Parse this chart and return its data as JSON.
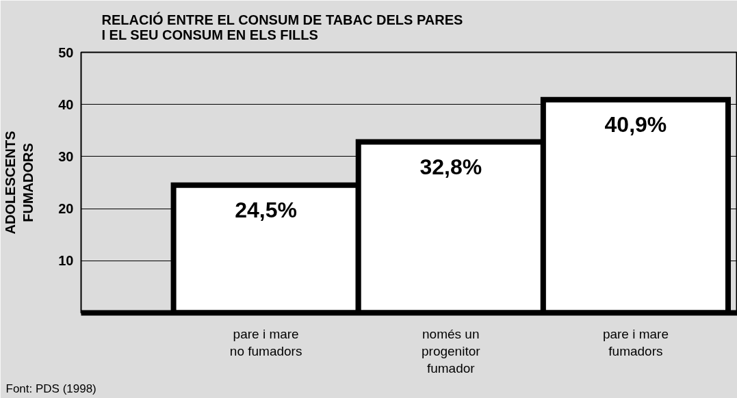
{
  "chart_data": {
    "type": "bar",
    "title": "RELACIÓ ENTRE EL CONSUM DE TABAC DELS PARES\nI EL SEU CONSUM EN ELS FILLS",
    "ylabel": "ADOLESCENTS\nFUMADORS",
    "categories": [
      "pare i mare\nno fumadors",
      "només un\nprogenitor\nfumador",
      "pare i mare\nfumadors"
    ],
    "values": [
      24.5,
      32.8,
      40.9
    ],
    "value_labels": [
      "24,5%",
      "32,8%",
      "40,9%"
    ],
    "color": "#ffffff",
    "ylim": [
      0,
      50
    ],
    "yticks": [
      10,
      20,
      30,
      40,
      50
    ],
    "grid": "y",
    "annotations": [
      "Font: PDS (1998)"
    ]
  }
}
